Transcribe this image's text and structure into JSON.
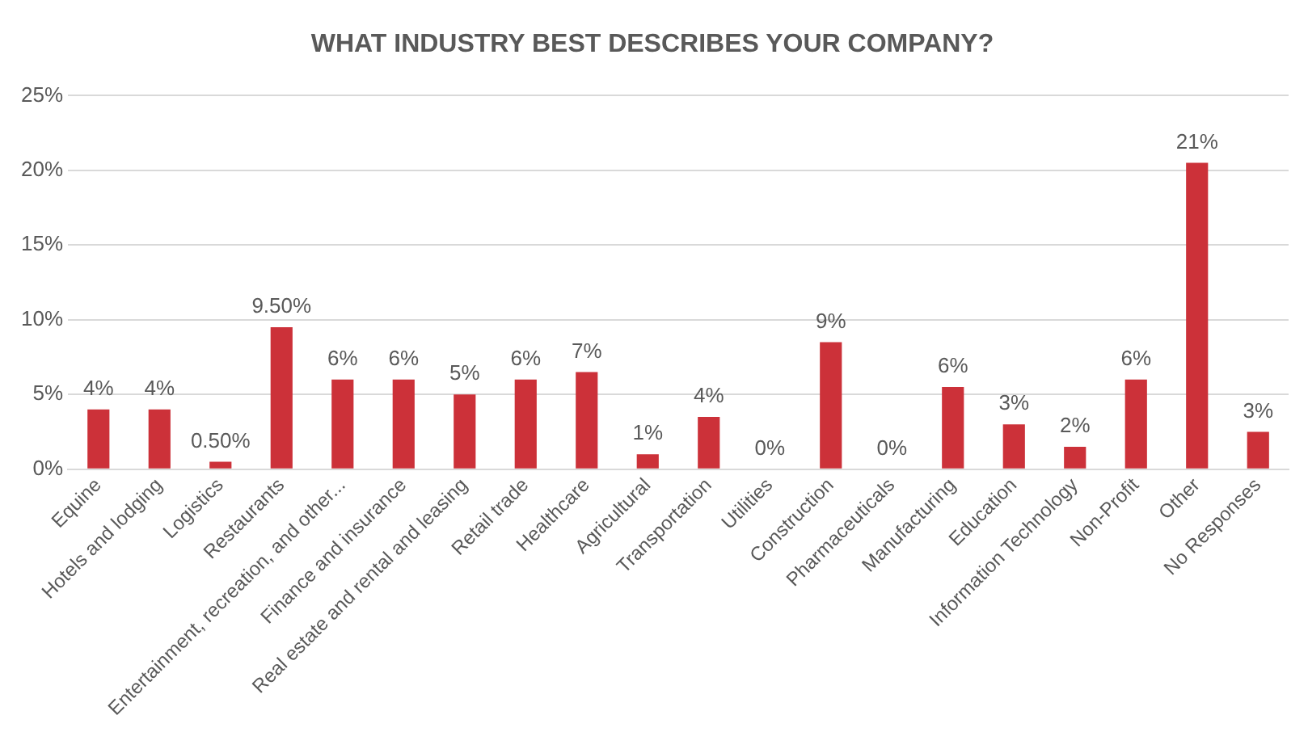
{
  "chart_data": {
    "type": "bar",
    "title": "WHAT INDUSTRY BEST DESCRIBES YOUR COMPANY?",
    "categories": [
      "Equine",
      "Hotels and lodging",
      "Logistics",
      "Restaurants",
      "Entertainment, recreation, and other...",
      "Finance and insurance",
      "Real estate and rental and leasing",
      "Retail trade",
      "Healthcare",
      "Agricultural",
      "Transportation",
      "Utilities",
      "Construction",
      "Pharmaceuticals",
      "Manufacturing",
      "Education",
      "Information Technology",
      "Non-Profit",
      "Other",
      "No Responses"
    ],
    "values": [
      4,
      4,
      0.5,
      9.5,
      6,
      6,
      5,
      6,
      6.5,
      1,
      3.5,
      0,
      8.5,
      0,
      5.5,
      3,
      1.5,
      6,
      20.5,
      2.5
    ],
    "value_labels": [
      "4%",
      "4%",
      "0.50%",
      "9.50%",
      "6%",
      "6%",
      "5%",
      "6%",
      "7%",
      "1%",
      "4%",
      "0%",
      "9%",
      "0%",
      "6%",
      "3%",
      "2%",
      "6%",
      "21%",
      "3%"
    ],
    "color": "#cc3139",
    "ylim": [
      0,
      25
    ],
    "yticks": [
      {
        "value": 0,
        "label": "0%"
      },
      {
        "value": 5,
        "label": "5%"
      },
      {
        "value": 10,
        "label": "10%"
      },
      {
        "value": 15,
        "label": "15%"
      },
      {
        "value": 20,
        "label": "20%"
      },
      {
        "value": 25,
        "label": "25%"
      }
    ],
    "grid": "y",
    "legend": false
  }
}
